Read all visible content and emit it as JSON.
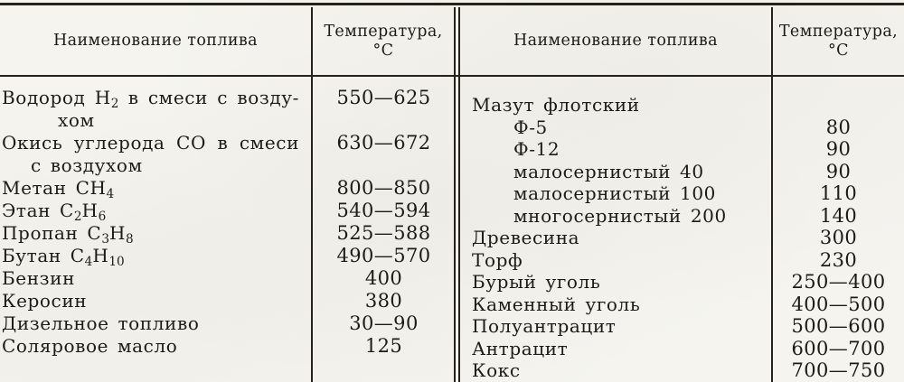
{
  "header": {
    "left": {
      "name_label": "Наименование топлива",
      "temp_label": "Температура,",
      "temp_unit": "°C"
    },
    "right": {
      "name_label": "Наименование топлива",
      "temp_label": "Температура,",
      "temp_unit": "°C"
    }
  },
  "left_table": {
    "rows": [
      {
        "label": "Водород H_2 в смеси с возду-",
        "cont": "хом",
        "cont_indent": "deep",
        "temp": "550—625",
        "justify": true
      },
      {
        "label": "Окись углерода CO в смеси",
        "cont": "с воздухом",
        "cont_indent": "shallow",
        "temp": "630—672",
        "justify": true
      },
      {
        "label": "Метан CH_4",
        "temp": "800—850"
      },
      {
        "label": "Этан C_2H_6",
        "temp": "540—594"
      },
      {
        "label": "Пропан C_3H_8",
        "temp": "525—588"
      },
      {
        "label": "Бутан C_4H_10",
        "temp": "490—570"
      },
      {
        "label": "Бензин",
        "temp": "400"
      },
      {
        "label": "Керосин",
        "temp": "380"
      },
      {
        "label": "Дизельное топливо",
        "temp": "30—90"
      },
      {
        "label": "Соляровое масло",
        "temp": "125"
      }
    ]
  },
  "right_table": {
    "rows": [
      {
        "label": "Мазут флотский",
        "temp": ""
      },
      {
        "label": "Ф-5",
        "temp": "80",
        "indent": true
      },
      {
        "label": "Ф-12",
        "temp": "90",
        "indent": true
      },
      {
        "label": "малосернистый 40",
        "temp": "90",
        "indent": true
      },
      {
        "label": "малосернистый 100",
        "temp": "110",
        "indent": true
      },
      {
        "label": "многосернистый 200",
        "temp": "140",
        "indent": true
      },
      {
        "label": "Древесина",
        "temp": "300"
      },
      {
        "label": "Торф",
        "temp": "230"
      },
      {
        "label": "Бурый уголь",
        "temp": "250—400"
      },
      {
        "label": "Каменный уголь",
        "temp": "400—500"
      },
      {
        "label": "Полуантрацит",
        "temp": "500—600"
      },
      {
        "label": "Антрацит",
        "temp": "600—700"
      },
      {
        "label": "Кокс",
        "temp": "700—750"
      }
    ]
  }
}
